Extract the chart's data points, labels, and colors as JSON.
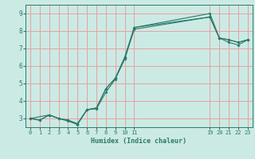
{
  "xlabel": "Humidex (Indice chaleur)",
  "bg_color": "#cceae4",
  "grid_color": "#e8a0a0",
  "line_color": "#2a7a6a",
  "xlim": [
    -0.5,
    23.5
  ],
  "ylim": [
    2.5,
    9.5
  ],
  "xticks": [
    0,
    1,
    2,
    3,
    4,
    5,
    6,
    7,
    8,
    9,
    10,
    11,
    19,
    20,
    21,
    22,
    23
  ],
  "yticks": [
    3,
    4,
    5,
    6,
    7,
    8,
    9
  ],
  "lines": [
    {
      "x": [
        0,
        1,
        2,
        3,
        4,
        5,
        6,
        7,
        8,
        9,
        10,
        11,
        19,
        20,
        21,
        22,
        23
      ],
      "y": [
        3.0,
        2.9,
        3.2,
        3.0,
        2.9,
        2.7,
        3.5,
        3.6,
        4.7,
        5.3,
        6.5,
        8.2,
        8.8,
        7.6,
        7.5,
        7.35,
        7.5
      ]
    },
    {
      "x": [
        0,
        1,
        2,
        3,
        4,
        5,
        6,
        7,
        8,
        9,
        10,
        11,
        19,
        20,
        21,
        22,
        23
      ],
      "y": [
        3.0,
        2.9,
        3.2,
        3.0,
        2.9,
        2.7,
        3.5,
        3.6,
        4.7,
        5.3,
        6.5,
        8.2,
        9.0,
        7.6,
        7.5,
        7.35,
        7.5
      ]
    },
    {
      "x": [
        0,
        2,
        3,
        4,
        5,
        6,
        7,
        8,
        9,
        10,
        11,
        19,
        20,
        21,
        22,
        23
      ],
      "y": [
        3.0,
        3.2,
        3.0,
        2.85,
        2.65,
        3.5,
        3.55,
        4.5,
        5.25,
        6.4,
        8.1,
        8.8,
        7.6,
        7.35,
        7.2,
        7.5
      ]
    }
  ]
}
